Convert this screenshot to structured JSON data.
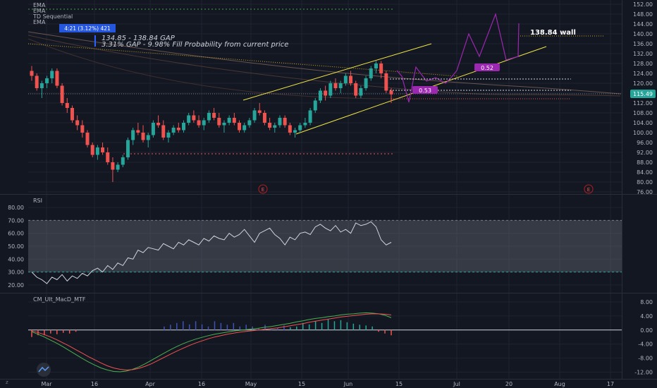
{
  "colors": {
    "bg": "#131722",
    "grid": "#1f2330",
    "up": "#26a69a",
    "down": "#ef5350",
    "text": "#b2b5be",
    "yellow": "#f0e442",
    "purple": "#9c27b0",
    "accent_blue": "#2962ff",
    "price_tag": "#26a69a"
  },
  "price_pane": {
    "indicator_labels": [
      "EMA",
      "EMA",
      "TD Sequential",
      "EMA"
    ],
    "ylim": [
      76,
      152
    ],
    "yticks": [
      "152.00",
      "148.00",
      "144.00",
      "140.00",
      "136.00",
      "132.00",
      "128.00",
      "124.00",
      "120.00",
      "116.00",
      "112.00",
      "108.00",
      "104.00",
      "100.00",
      "96.00",
      "92.00",
      "88.00",
      "84.00",
      "80.00",
      "76.00"
    ],
    "current_price": "115.49",
    "range_badge": "4:21 (3.12%) 421",
    "gap_line1": "134.85 - 138.84 GAP",
    "gap_line2": "3.31% GAP - 9.98% Fill Probability from current price",
    "wall_label": "138.84 wall",
    "fib_a": "0.52",
    "fib_b": "0.53",
    "earnings_marker": "E"
  },
  "rsi_pane": {
    "label": "RSI",
    "yticks": [
      "80.00",
      "70.00",
      "60.00",
      "50.00",
      "40.00",
      "30.00",
      "20.00"
    ]
  },
  "macd_pane": {
    "label": "CM_Ult_MacD_MTF",
    "yticks": [
      "8.00",
      "4.00",
      "0.00",
      "-4.00",
      "-8.00",
      "-12.00"
    ]
  },
  "time_axis": {
    "ticks": [
      "Mar",
      "16",
      "Apr",
      "16",
      "May",
      "15",
      "Jun",
      "15",
      "Jul",
      "20",
      "Aug",
      "17"
    ]
  },
  "chart_data": [
    {
      "type": "candlestick",
      "title": "",
      "ylim": [
        76,
        152
      ],
      "x_ticks": [
        "Mar",
        "16",
        "Apr",
        "16",
        "May",
        "15",
        "Jun",
        "15",
        "Jul",
        "20",
        "Aug",
        "17"
      ],
      "candles": [
        [
          125,
          127,
          121,
          123
        ],
        [
          123,
          124,
          117,
          118
        ],
        [
          118,
          121,
          114,
          120
        ],
        [
          120,
          123,
          118,
          122
        ],
        [
          122,
          126,
          120,
          125
        ],
        [
          125,
          126,
          118,
          119
        ],
        [
          119,
          120,
          111,
          112
        ],
        [
          112,
          114,
          108,
          110
        ],
        [
          110,
          111,
          104,
          105
        ],
        [
          105,
          107,
          101,
          103
        ],
        [
          103,
          105,
          98,
          100
        ],
        [
          100,
          101,
          94,
          95
        ],
        [
          95,
          96,
          90,
          91
        ],
        [
          91,
          95,
          89,
          94
        ],
        [
          94,
          96,
          91,
          92
        ],
        [
          92,
          94,
          87,
          88
        ],
        [
          88,
          90,
          80,
          85
        ],
        [
          85,
          88,
          84,
          87
        ],
        [
          87,
          91,
          86,
          90
        ],
        [
          90,
          98,
          89,
          97
        ],
        [
          97,
          102,
          95,
          101
        ],
        [
          101,
          104,
          99,
          100
        ],
        [
          100,
          103,
          96,
          97
        ],
        [
          97,
          100,
          94,
          99
        ],
        [
          99,
          105,
          98,
          104
        ],
        [
          104,
          107,
          102,
          103
        ],
        [
          103,
          105,
          97,
          98
        ],
        [
          98,
          101,
          96,
          100
        ],
        [
          100,
          103,
          99,
          102
        ],
        [
          102,
          104,
          100,
          101
        ],
        [
          101,
          105,
          100,
          104
        ],
        [
          104,
          108,
          103,
          107
        ],
        [
          107,
          109,
          104,
          105
        ],
        [
          105,
          107,
          102,
          103
        ],
        [
          103,
          106,
          101,
          105
        ],
        [
          105,
          109,
          104,
          108
        ],
        [
          108,
          110,
          105,
          106
        ],
        [
          106,
          108,
          102,
          103
        ],
        [
          103,
          105,
          100,
          104
        ],
        [
          104,
          107,
          103,
          106
        ],
        [
          106,
          108,
          103,
          104
        ],
        [
          104,
          105,
          100,
          101
        ],
        [
          101,
          104,
          100,
          103
        ],
        [
          103,
          106,
          102,
          105
        ],
        [
          105,
          110,
          104,
          109
        ],
        [
          109,
          112,
          107,
          108
        ],
        [
          108,
          109,
          103,
          104
        ],
        [
          104,
          106,
          101,
          102
        ],
        [
          102,
          104,
          100,
          103
        ],
        [
          103,
          107,
          102,
          106
        ],
        [
          106,
          107,
          102,
          103
        ],
        [
          103,
          104,
          99,
          100
        ],
        [
          100,
          102,
          98,
          101
        ],
        [
          101,
          104,
          100,
          103
        ],
        [
          103,
          106,
          102,
          104
        ],
        [
          104,
          110,
          103,
          109
        ],
        [
          109,
          114,
          108,
          113
        ],
        [
          113,
          118,
          112,
          117
        ],
        [
          117,
          119,
          113,
          115
        ],
        [
          115,
          121,
          114,
          120
        ],
        [
          120,
          122,
          117,
          118
        ],
        [
          118,
          121,
          116,
          120
        ],
        [
          120,
          124,
          119,
          123
        ],
        [
          123,
          125,
          119,
          120
        ],
        [
          120,
          121,
          114,
          115
        ],
        [
          115,
          119,
          114,
          118
        ],
        [
          118,
          123,
          117,
          122
        ],
        [
          122,
          127,
          121,
          126
        ],
        [
          126,
          129,
          124,
          128
        ],
        [
          128,
          129,
          122,
          124
        ],
        [
          124,
          125,
          116,
          117
        ],
        [
          117,
          118,
          112,
          115.49
        ]
      ]
    },
    {
      "type": "line",
      "title": "RSI",
      "ylim": [
        20,
        80
      ],
      "band": [
        30,
        70
      ],
      "values": [
        30,
        26,
        24,
        21,
        26,
        24,
        28,
        23,
        27,
        25,
        29,
        27,
        31,
        33,
        30,
        35,
        32,
        37,
        35,
        41,
        40,
        47,
        45,
        49,
        48,
        47,
        52,
        50,
        48,
        53,
        51,
        55,
        53,
        51,
        56,
        54,
        58,
        56,
        55,
        60,
        57,
        59,
        63,
        58,
        53,
        60,
        62,
        64,
        59,
        56,
        51,
        57,
        55,
        60,
        61,
        59,
        65,
        67,
        64,
        62,
        66,
        61,
        63,
        60,
        68,
        66,
        67,
        69,
        65,
        55,
        51,
        53
      ]
    },
    {
      "type": "line",
      "title": "CM_Ult_MacD_MTF",
      "ylim": [
        -13,
        10
      ],
      "series": [
        {
          "values": [
            -0.5,
            -1.2,
            -2.0,
            -2.9,
            -3.8,
            -4.8,
            -5.9,
            -7.0,
            -8.1,
            -9.1,
            -10.0,
            -10.8,
            -11.4,
            -11.8,
            -11.9,
            -11.7,
            -11.2,
            -10.5,
            -9.6,
            -8.6,
            -7.6,
            -6.6,
            -5.6,
            -4.7,
            -3.9,
            -3.2,
            -2.6,
            -2.1,
            -1.6,
            -1.2,
            -0.9,
            -0.6,
            -0.3,
            -0.1,
            0.1,
            0.3,
            0.5,
            0.8,
            1.0,
            1.3,
            1.6,
            1.9,
            2.3,
            2.6,
            3.0,
            3.3,
            3.5,
            3.8,
            4.0,
            4.3,
            4.5,
            4.6,
            4.8,
            4.9,
            4.8,
            4.6,
            4.2,
            3.5
          ]
        },
        {
          "values": [
            -0.3,
            -0.7,
            -1.3,
            -2.0,
            -2.8,
            -3.7,
            -4.6,
            -5.6,
            -6.6,
            -7.6,
            -8.5,
            -9.4,
            -10.2,
            -10.8,
            -11.2,
            -11.4,
            -11.3,
            -10.9,
            -10.3,
            -9.6,
            -8.7,
            -7.8,
            -6.9,
            -6.0,
            -5.2,
            -4.4,
            -3.7,
            -3.1,
            -2.5,
            -2.0,
            -1.6,
            -1.2,
            -0.9,
            -0.6,
            -0.4,
            -0.2,
            0.0,
            0.2,
            0.4,
            0.6,
            0.9,
            1.2,
            1.5,
            1.8,
            2.2,
            2.5,
            2.8,
            3.1,
            3.4,
            3.7,
            3.9,
            4.1,
            4.3,
            4.5,
            4.6,
            4.6,
            4.5,
            4.3
          ]
        }
      ],
      "histogram": [
        -2.0,
        -1.5,
        -1.5,
        -1.0,
        -1.2,
        -0.8,
        -1.0,
        -0.5,
        0,
        0,
        0,
        0,
        0,
        0,
        0,
        0,
        0,
        0,
        0,
        0,
        0,
        1.0,
        1.5,
        2.0,
        2.5,
        1.6,
        2.5,
        1.6,
        1.0,
        2.5,
        2.0,
        1.5,
        2.0,
        1.0,
        1.5,
        1.0,
        0.6,
        1.5,
        0.3,
        0.6,
        1.3,
        0.8,
        1.0,
        2.0,
        1.6,
        2.5,
        2.0,
        3.0,
        2.5,
        2.8,
        2.2,
        1.8,
        1.5,
        1.3,
        1.0,
        -0.5,
        -1.0,
        -1.5
      ]
    }
  ]
}
